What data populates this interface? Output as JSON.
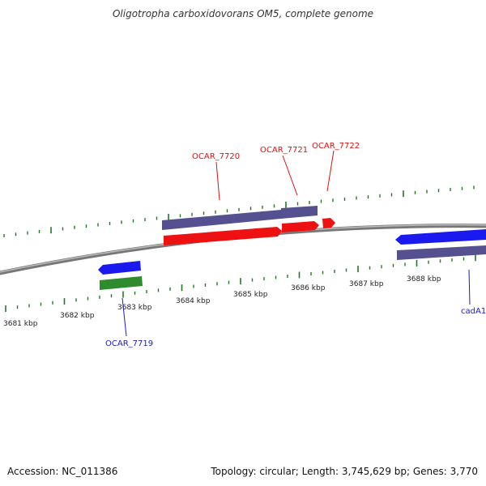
{
  "title": "Oligotropha carboxidovorans OM5, complete genome",
  "footer": {
    "accession": "Accession: NC_011386",
    "summary": "Topology: circular; Length: 3,745,629 bp; Genes: 3,770"
  },
  "colors": {
    "backbone": "#8c8c8c",
    "tick_green": "#1f7a1f",
    "forward_gene": "#ee1111",
    "reverse_gene": "#1a1aee",
    "cds_purple": "#55508f",
    "rrna_green": "#2e8b2e",
    "label_forward": "#dd1111",
    "label_reverse": "#1a1acc"
  },
  "ticks": {
    "unit": "kbp",
    "labels": [
      "3681 kbp",
      "3682 kbp",
      "3683 kbp",
      "3684 kbp",
      "3685 kbp",
      "3686 kbp",
      "3687 kbp",
      "3688 kbp"
    ]
  },
  "genes": [
    {
      "name": "OCAR_7720",
      "strand": "forward"
    },
    {
      "name": "OCAR_7721",
      "strand": "forward"
    },
    {
      "name": "OCAR_7722",
      "strand": "forward"
    },
    {
      "name": "OCAR_7719",
      "strand": "reverse"
    },
    {
      "name": "cadA1",
      "strand": "reverse"
    }
  ]
}
